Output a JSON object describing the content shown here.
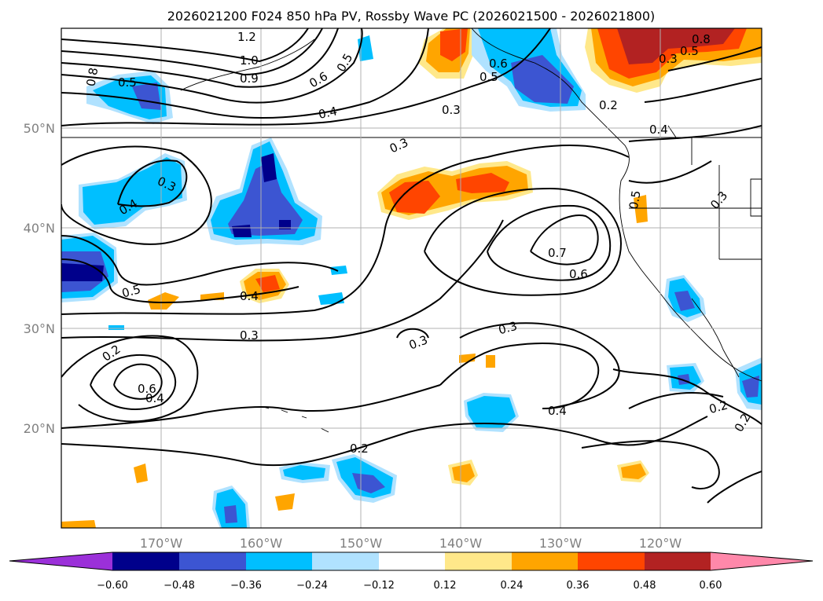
{
  "title": "2026021200 F024 850 hPa PV, Rossby Wave PC (2026021500 - 2026021800)",
  "axes": {
    "lon_labels": [
      "170°W",
      "160°W",
      "150°W",
      "140°W",
      "130°W",
      "120°W"
    ],
    "lat_labels": [
      "50°N",
      "40°N",
      "30°N",
      "20°N"
    ],
    "lon_range": [
      -180,
      -110
    ],
    "lat_range": [
      10,
      60
    ],
    "grid": true
  },
  "colorbar": {
    "extend": "both",
    "ticks": [
      "−0.60",
      "−0.48",
      "−0.36",
      "−0.24",
      "−0.12",
      "0.12",
      "0.24",
      "0.36",
      "0.48",
      "0.60"
    ],
    "colors": {
      "below_min": "#9b30d9",
      "neg_060_048": "#00008b",
      "neg_048_036": "#3c55d2",
      "neg_036_024": "#00bfff",
      "neg_024_012": "#b0e2ff",
      "neutral": "#ffffff",
      "pos_012_024": "#ffe88a",
      "pos_024_036": "#ffa500",
      "pos_036_048": "#ff4500",
      "pos_048_060": "#b22222",
      "above_max": "#ff88aa"
    }
  },
  "contour_labels": [
    {
      "text": "1.2"
    },
    {
      "text": "1.0"
    },
    {
      "text": "0.9"
    },
    {
      "text": "0.8"
    },
    {
      "text": "0.5"
    },
    {
      "text": "0.6"
    },
    {
      "text": "0.5"
    },
    {
      "text": "0.4"
    },
    {
      "text": "0.3"
    },
    {
      "text": "0.3"
    },
    {
      "text": "0.6"
    },
    {
      "text": "0.5"
    },
    {
      "text": "0.3"
    },
    {
      "text": "0.2"
    },
    {
      "text": "0.8"
    },
    {
      "text": "0.5"
    },
    {
      "text": "0.4"
    },
    {
      "text": "0.4"
    },
    {
      "text": "0.3"
    },
    {
      "text": "0.5"
    },
    {
      "text": "0.3"
    },
    {
      "text": "0.7"
    },
    {
      "text": "0.6"
    },
    {
      "text": "0.5"
    },
    {
      "text": "0.4"
    },
    {
      "text": "0.3"
    },
    {
      "text": "0.3"
    },
    {
      "text": "0.3"
    },
    {
      "text": "0.6"
    },
    {
      "text": "0.4"
    },
    {
      "text": "0.2"
    },
    {
      "text": "0.4"
    },
    {
      "text": "0.2"
    },
    {
      "text": "0.2"
    },
    {
      "text": "0.2"
    }
  ]
}
